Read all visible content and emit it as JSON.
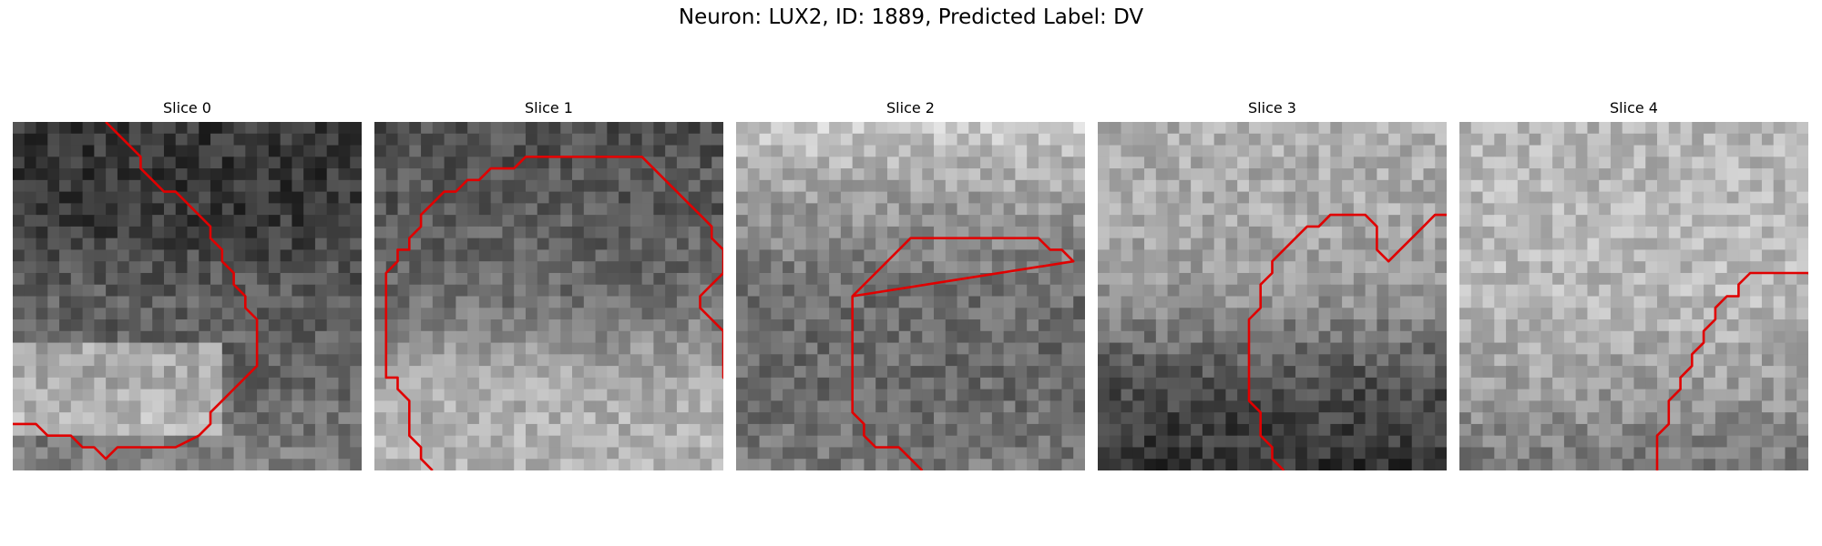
{
  "figure": {
    "title": "Neuron: LUX2, ID: 1889, Predicted Label: DV"
  },
  "colors": {
    "contour": "#e00000",
    "background": "#ffffff"
  },
  "grid_size": 30,
  "panels": [
    {
      "title": "Slice 0",
      "base": [
        55,
        55,
        95,
        100,
        130
      ],
      "bright_band": true,
      "contour": [
        [
          8,
          0
        ],
        [
          11,
          3
        ],
        [
          11,
          4
        ],
        [
          13,
          6
        ],
        [
          14,
          6
        ],
        [
          17,
          9
        ],
        [
          17,
          10
        ],
        [
          18,
          11
        ],
        [
          18,
          12
        ],
        [
          19,
          13
        ],
        [
          19,
          14
        ],
        [
          20,
          15
        ],
        [
          20,
          16
        ],
        [
          21,
          17
        ],
        [
          21,
          21
        ],
        [
          18,
          24
        ],
        [
          17,
          25
        ],
        [
          17,
          26
        ],
        [
          16,
          27
        ],
        [
          14,
          28
        ],
        [
          9,
          28
        ],
        [
          8,
          29
        ],
        [
          7,
          28
        ],
        [
          6,
          28
        ],
        [
          5,
          27
        ],
        [
          3,
          27
        ],
        [
          2,
          26
        ],
        [
          0,
          26
        ]
      ]
    },
    {
      "title": "Slice 1",
      "base": [
        80,
        90,
        110,
        170,
        180
      ],
      "bright_band": false,
      "contour": [
        [
          5,
          30
        ],
        [
          4,
          29
        ],
        [
          4,
          28
        ],
        [
          3,
          27
        ],
        [
          3,
          24
        ],
        [
          2,
          23
        ],
        [
          2,
          22
        ],
        [
          1,
          22
        ],
        [
          1,
          13
        ],
        [
          2,
          12
        ],
        [
          2,
          11
        ],
        [
          3,
          11
        ],
        [
          3,
          10
        ],
        [
          4,
          9
        ],
        [
          4,
          8
        ],
        [
          5,
          7
        ],
        [
          6,
          6
        ],
        [
          7,
          6
        ],
        [
          8,
          5
        ],
        [
          9,
          5
        ],
        [
          10,
          4
        ],
        [
          12,
          4
        ],
        [
          13,
          3
        ],
        [
          23,
          3
        ],
        [
          26,
          6
        ],
        [
          27,
          7
        ],
        [
          28,
          8
        ],
        [
          29,
          9
        ],
        [
          29,
          10
        ],
        [
          30,
          11
        ],
        [
          30,
          13
        ],
        [
          29,
          14
        ],
        [
          28,
          15
        ],
        [
          28,
          16
        ],
        [
          29,
          17
        ],
        [
          30,
          18
        ],
        [
          30,
          20
        ],
        [
          30,
          22
        ],
        [
          31,
          23
        ],
        [
          31,
          27
        ],
        [
          32,
          28
        ],
        [
          32,
          30
        ]
      ]
    },
    {
      "title": "Slice 2",
      "base": [
        200,
        150,
        110,
        105,
        120
      ],
      "bright_band": false,
      "contour": [
        [
          10,
          15
        ],
        [
          15,
          10
        ],
        [
          26,
          10
        ],
        [
          27,
          11
        ],
        [
          28,
          11
        ],
        [
          29,
          12
        ],
        [
          10,
          15
        ],
        [
          10,
          25
        ],
        [
          11,
          26
        ],
        [
          11,
          27
        ],
        [
          12,
          28
        ],
        [
          14,
          28
        ],
        [
          15,
          29
        ],
        [
          16,
          30
        ]
      ]
    },
    {
      "title": "Slice 3",
      "base": [
        175,
        170,
        150,
        80,
        50
      ],
      "bright_band": false,
      "contour": [
        [
          16,
          30
        ],
        [
          15,
          29
        ],
        [
          15,
          28
        ],
        [
          14,
          27
        ],
        [
          14,
          25
        ],
        [
          13,
          24
        ],
        [
          13,
          17
        ],
        [
          14,
          16
        ],
        [
          14,
          14
        ],
        [
          15,
          13
        ],
        [
          15,
          12
        ],
        [
          17,
          10
        ],
        [
          18,
          9
        ],
        [
          19,
          9
        ],
        [
          20,
          8
        ],
        [
          23,
          8
        ],
        [
          24,
          9
        ],
        [
          24,
          11
        ],
        [
          25,
          12
        ],
        [
          26,
          11
        ],
        [
          27,
          10
        ],
        [
          28,
          9
        ],
        [
          29,
          8
        ],
        [
          32,
          8
        ],
        [
          33,
          9
        ],
        [
          34,
          10
        ],
        [
          36,
          10
        ],
        [
          37,
          11
        ],
        [
          38,
          12
        ]
      ]
    },
    {
      "title": "Slice 4",
      "base": [
        180,
        185,
        185,
        160,
        120
      ],
      "bright_band": false,
      "contour": [
        [
          17,
          30
        ],
        [
          17,
          27
        ],
        [
          18,
          26
        ],
        [
          18,
          24
        ],
        [
          19,
          23
        ],
        [
          19,
          22
        ],
        [
          20,
          21
        ],
        [
          20,
          20
        ],
        [
          21,
          19
        ],
        [
          21,
          18
        ],
        [
          22,
          17
        ],
        [
          22,
          16
        ],
        [
          23,
          15
        ],
        [
          24,
          15
        ],
        [
          24,
          14
        ],
        [
          25,
          13
        ],
        [
          27,
          13
        ],
        [
          28,
          13
        ],
        [
          29,
          13
        ],
        [
          30,
          13
        ],
        [
          33,
          16
        ],
        [
          35,
          16
        ]
      ]
    }
  ]
}
